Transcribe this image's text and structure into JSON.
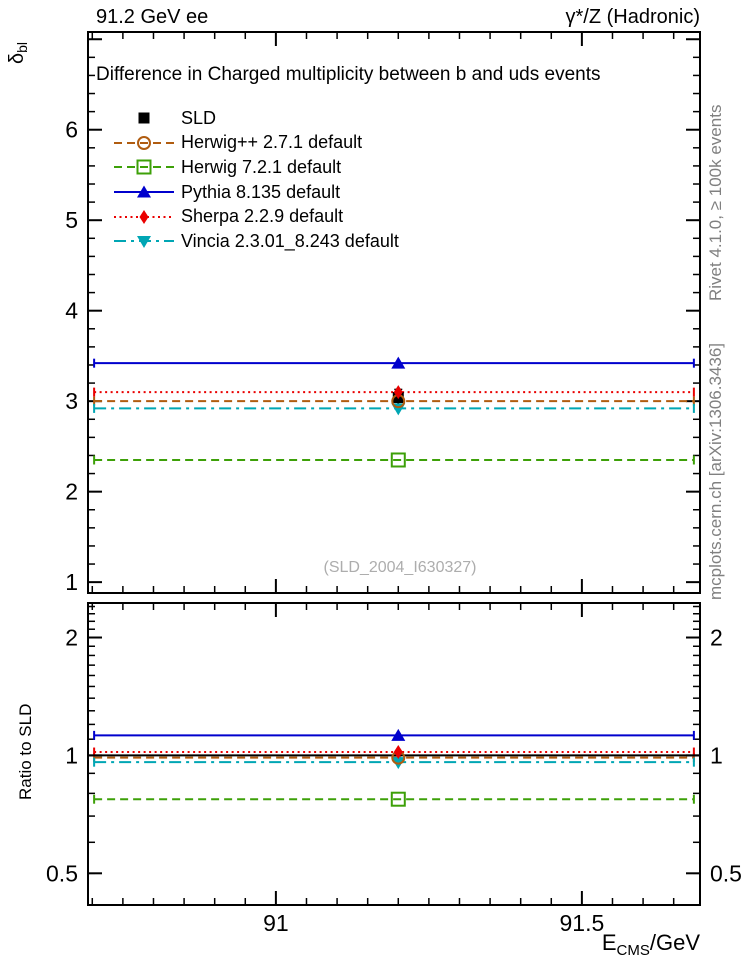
{
  "header": {
    "left": "91.2 GeV ee",
    "right": "γ*/Z (Hadronic)"
  },
  "side_notes": {
    "top": "Rivet 4.1.0, ≥ 100k events",
    "bottom": "mcplots.cern.ch [arXiv:1306.3436]"
  },
  "watermark": "(SLD_2004_I630327)",
  "colors": {
    "frame": "#000000",
    "note_gray": "#808080",
    "watermark_gray": "#adadad"
  },
  "chart_data": {
    "type": "line",
    "title": "Difference in Charged multiplicity between b and uds events",
    "x_axis": {
      "label": {
        "base": "E",
        "sub": "CMS",
        "suffix": "/GeV"
      },
      "range": [
        90.693,
        91.693
      ],
      "major_ticks": [
        91,
        91.5
      ],
      "major_tick_labels": [
        "91",
        "91.5"
      ],
      "minor_step": 0.05
    },
    "top_panel": {
      "y_label": {
        "base": "δ",
        "sub": "bl"
      },
      "scale": "linear",
      "range": [
        0.88,
        7.08
      ],
      "major_ticks": [
        1,
        2,
        3,
        4,
        5,
        6,
        7
      ],
      "labeled_ticks": [
        1,
        2,
        3,
        4,
        5,
        6
      ],
      "minor_step": 0.2
    },
    "ratio_panel": {
      "y_label": "Ratio to SLD",
      "scale": "log",
      "range": [
        0.415,
        2.45
      ],
      "labeled_ticks": [
        0.5,
        1,
        2
      ],
      "minor_ticks": [
        0.5,
        0.6,
        0.7,
        0.8,
        0.9,
        1.1,
        1.2,
        1.3,
        1.4,
        1.5,
        1.6,
        1.7,
        1.8,
        1.9,
        2.1,
        2.2,
        2.3,
        2.4
      ],
      "reference_line": 1.0
    },
    "x_value": 91.2,
    "bin_edges": [
      90.703,
      91.683
    ],
    "reference": {
      "label": "SLD",
      "value": 3.04,
      "error": 0.09,
      "ratio": 1.0,
      "color": "#000000",
      "marker": "filled-square"
    },
    "series": [
      {
        "label": "Herwig++ 2.7.1 default",
        "value": 3.0,
        "ratio": 0.987,
        "color": "#b05c10",
        "line": "dash",
        "marker": "open-circle"
      },
      {
        "label": "Herwig 7.2.1 default",
        "value": 2.35,
        "ratio": 0.773,
        "color": "#3da008",
        "line": "dash",
        "marker": "open-square"
      },
      {
        "label": "Pythia 8.135 default",
        "value": 3.42,
        "ratio": 1.125,
        "color": "#0000cd",
        "line": "solid",
        "marker": "filled-triangle-up"
      },
      {
        "label": "Sherpa 2.2.9 default",
        "value": 3.1,
        "ratio": 1.02,
        "color": "#ea0000",
        "line": "dot",
        "marker": "filled-diamond"
      },
      {
        "label": "Vincia 2.3.01_8.243 default",
        "value": 2.92,
        "ratio": 0.961,
        "color": "#00a6b4",
        "line": "dashdot",
        "marker": "filled-triangle-down"
      }
    ]
  }
}
